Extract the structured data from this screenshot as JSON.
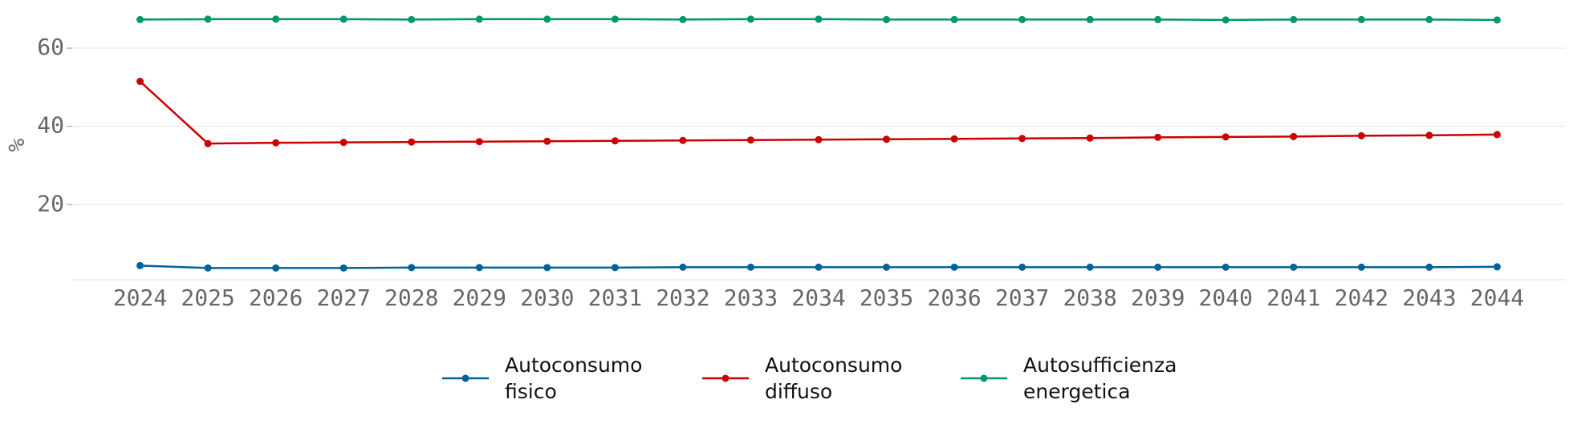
{
  "chart_data": {
    "type": "line",
    "y_label": "%",
    "x": [
      2024,
      2025,
      2026,
      2027,
      2028,
      2029,
      2030,
      2031,
      2032,
      2033,
      2034,
      2035,
      2036,
      2037,
      2038,
      2039,
      2040,
      2041,
      2042,
      2043,
      2044
    ],
    "xlim": [
      2023,
      2045
    ],
    "xticks": [
      2024,
      2025,
      2026,
      2027,
      2028,
      2029,
      2030,
      2031,
      2032,
      2033,
      2034,
      2035,
      2036,
      2037,
      2038,
      2039,
      2040,
      2041,
      2042,
      2043,
      2044
    ],
    "ylim": [
      0.8,
      72.3
    ],
    "yticks": [
      20,
      40,
      60
    ],
    "grid": true,
    "legend": "bottom",
    "series": [
      {
        "name": "Autoconsumo fisico",
        "color": "#00629b",
        "values": [
          4.4,
          3.8,
          3.8,
          3.8,
          3.9,
          3.9,
          3.9,
          3.9,
          4.0,
          4.0,
          4.0,
          4.0,
          4.0,
          4.0,
          4.0,
          4.0,
          4.0,
          4.0,
          4.0,
          4.0,
          4.1
        ]
      },
      {
        "name": "Autoconsumo diffuso",
        "color": "#cc0000",
        "values": [
          51.5,
          35.6,
          35.8,
          35.9,
          36.0,
          36.1,
          36.2,
          36.3,
          36.4,
          36.5,
          36.6,
          36.7,
          36.8,
          36.9,
          37.0,
          37.2,
          37.3,
          37.4,
          37.6,
          37.7,
          37.9
        ]
      },
      {
        "name": "Autosufficienza energetica",
        "color": "#00966e",
        "values": [
          67.3,
          67.4,
          67.4,
          67.4,
          67.3,
          67.4,
          67.4,
          67.4,
          67.3,
          67.4,
          67.4,
          67.3,
          67.3,
          67.3,
          67.3,
          67.3,
          67.2,
          67.3,
          67.3,
          67.3,
          67.2
        ]
      }
    ]
  }
}
